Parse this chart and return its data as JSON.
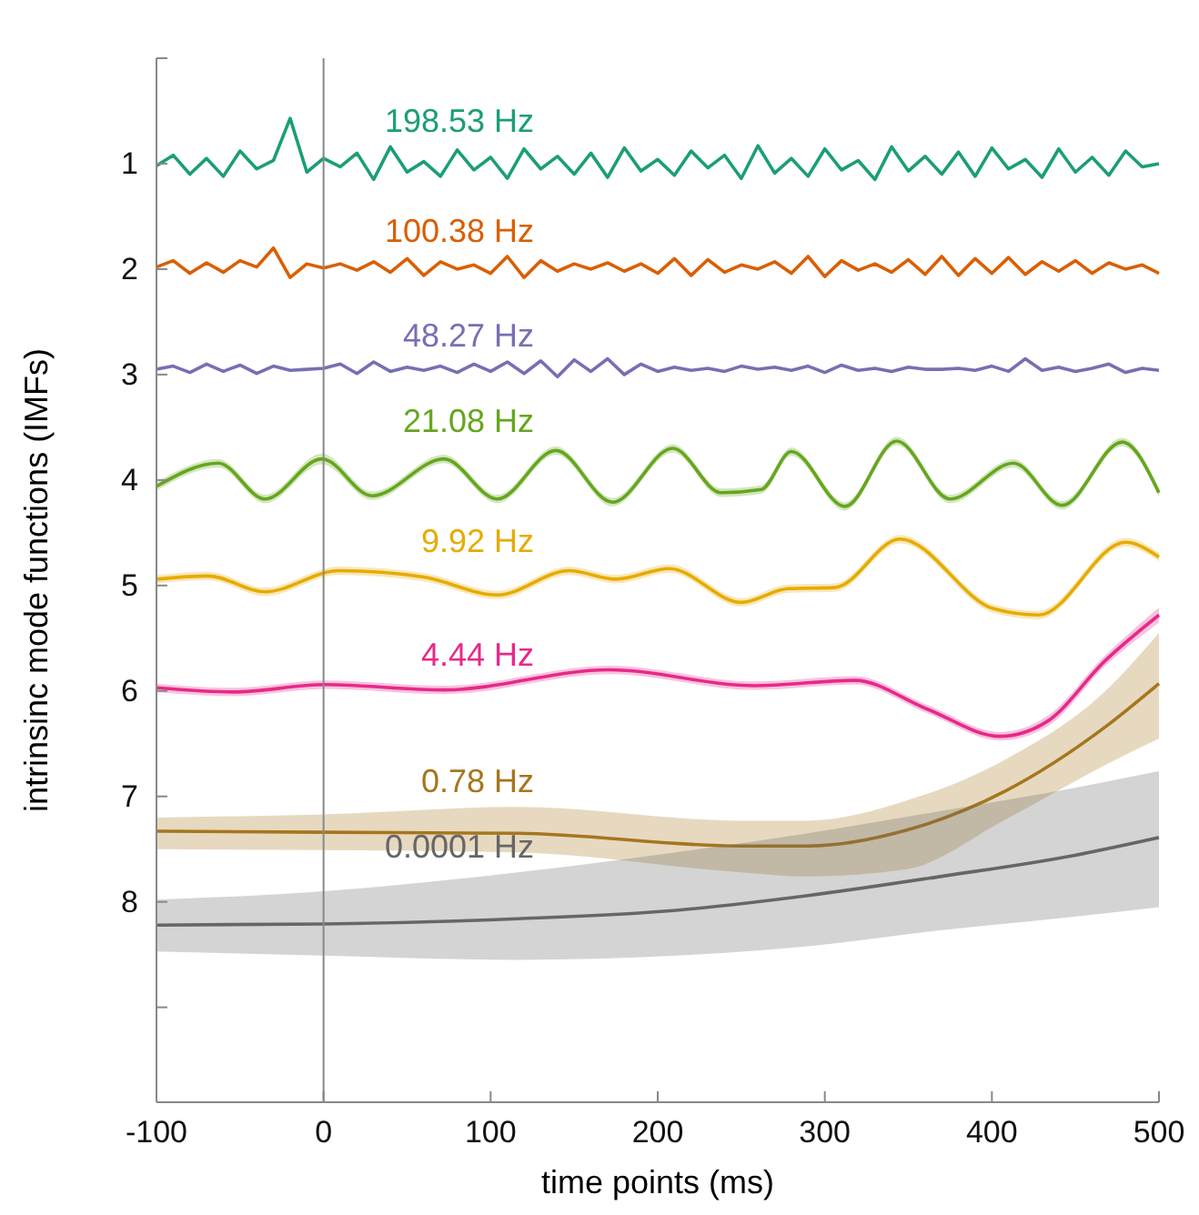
{
  "chart_data": {
    "type": "line",
    "xlabel": "time points (ms)",
    "ylabel": "intrinsinc mode functions (IMFs)",
    "xlim": [
      -100,
      500
    ],
    "xticks": [
      -100,
      0,
      100,
      200,
      300,
      400,
      500
    ],
    "ylim": [
      9.9,
      0
    ],
    "yticks": [
      {
        "value": 0,
        "label": null
      },
      1,
      2,
      3,
      4,
      5,
      6,
      7,
      8,
      {
        "value": 9,
        "label": null
      }
    ],
    "grid": false,
    "legend": false,
    "ref_lines": [
      {
        "axis": "x",
        "value": 0,
        "color": "#888888"
      }
    ],
    "x": [
      -100,
      -90,
      -80,
      -70,
      -60,
      -50,
      -40,
      -30,
      -20,
      -10,
      0,
      10,
      20,
      30,
      40,
      50,
      60,
      70,
      80,
      90,
      100,
      110,
      120,
      130,
      140,
      150,
      160,
      170,
      180,
      190,
      200,
      210,
      220,
      230,
      240,
      250,
      260,
      270,
      280,
      290,
      300,
      310,
      320,
      330,
      340,
      350,
      360,
      370,
      380,
      390,
      400,
      410,
      420,
      430,
      440,
      450,
      460,
      470,
      480,
      490,
      500
    ],
    "series": [
      {
        "name": "198.53 Hz",
        "color": "#1b9e77",
        "values": [
          1.02,
          0.92,
          1.1,
          0.95,
          1.12,
          0.88,
          1.05,
          0.97,
          0.57,
          1.08,
          0.95,
          1.03,
          0.9,
          1.15,
          0.84,
          1.08,
          0.98,
          1.12,
          0.87,
          1.06,
          0.94,
          1.14,
          0.86,
          1.05,
          0.93,
          1.1,
          0.9,
          1.13,
          0.85,
          1.07,
          0.96,
          1.11,
          0.88,
          1.04,
          0.92,
          1.14,
          0.83,
          1.09,
          0.95,
          1.12,
          0.86,
          1.06,
          0.97,
          1.15,
          0.84,
          1.07,
          0.93,
          1.1,
          0.89,
          1.12,
          0.85,
          1.05,
          0.96,
          1.13,
          0.86,
          1.08,
          0.94,
          1.11,
          0.88,
          1.03,
          1.0
        ]
      },
      {
        "name": "100.38 Hz",
        "color": "#d95f02",
        "values": [
          1.98,
          1.92,
          2.04,
          1.94,
          2.03,
          1.92,
          1.98,
          1.8,
          2.08,
          1.95,
          1.99,
          1.95,
          2.01,
          1.93,
          2.03,
          1.9,
          2.06,
          1.93,
          2.0,
          1.96,
          2.04,
          1.88,
          2.08,
          1.92,
          2.02,
          1.95,
          2.0,
          1.94,
          2.02,
          1.95,
          2.04,
          1.9,
          2.06,
          1.91,
          2.03,
          1.96,
          2.0,
          1.93,
          2.04,
          1.88,
          2.07,
          1.92,
          2.01,
          1.95,
          2.03,
          1.91,
          2.05,
          1.88,
          2.06,
          1.9,
          2.04,
          1.89,
          2.05,
          1.93,
          2.02,
          1.92,
          2.04,
          1.94,
          2.0,
          1.96,
          2.04
        ]
      },
      {
        "name": "48.27 Hz",
        "color": "#7570b3",
        "values": [
          2.95,
          2.92,
          2.98,
          2.9,
          2.97,
          2.91,
          2.99,
          2.92,
          2.96,
          2.95,
          2.94,
          2.9,
          2.99,
          2.88,
          2.97,
          2.93,
          2.96,
          2.92,
          2.98,
          2.9,
          2.97,
          2.88,
          2.99,
          2.87,
          3.02,
          2.86,
          2.97,
          2.85,
          3.0,
          2.9,
          2.97,
          2.93,
          2.96,
          2.94,
          2.97,
          2.92,
          2.95,
          2.93,
          2.96,
          2.92,
          2.98,
          2.91,
          2.96,
          2.94,
          2.97,
          2.93,
          2.95,
          2.95,
          2.94,
          2.96,
          2.92,
          2.97,
          2.85,
          2.96,
          2.93,
          2.97,
          2.94,
          2.9,
          2.98,
          2.94,
          2.96
        ]
      },
      {
        "name": "21.08 Hz",
        "color": "#66a61e",
        "x": [
          -100,
          -63,
          -35,
          -1,
          29,
          72,
          104,
          139,
          173,
          209,
          238,
          262,
          280,
          312,
          343,
          375,
          413,
          442,
          478,
          500
        ],
        "values": [
          4.06,
          3.84,
          4.18,
          3.8,
          4.15,
          3.8,
          4.18,
          3.72,
          4.21,
          3.7,
          4.12,
          4.09,
          3.73,
          4.25,
          3.63,
          4.18,
          3.84,
          4.24,
          3.64,
          4.12
        ],
        "lower": [
          4.02,
          3.8,
          4.14,
          3.75,
          4.11,
          3.76,
          4.14,
          3.68,
          4.17,
          3.66,
          4.08,
          4.05,
          3.69,
          4.21,
          3.59,
          4.14,
          3.8,
          4.2,
          3.6,
          4.08
        ],
        "upper": [
          4.1,
          3.88,
          4.22,
          3.85,
          4.19,
          3.84,
          4.22,
          3.76,
          4.25,
          3.74,
          4.16,
          4.13,
          3.77,
          4.29,
          3.67,
          4.22,
          3.88,
          4.28,
          3.68,
          4.16
        ]
      },
      {
        "name": "9.92 Hz",
        "color": "#e6ab02",
        "x": [
          -100,
          -69,
          -35,
          9,
          60,
          104,
          147,
          175,
          207,
          250,
          278,
          306,
          345,
          401,
          428,
          480,
          500
        ],
        "values": [
          4.94,
          4.91,
          5.06,
          4.86,
          4.92,
          5.09,
          4.86,
          4.94,
          4.84,
          5.16,
          5.03,
          5.02,
          4.56,
          5.22,
          5.28,
          4.59,
          4.73
        ],
        "lower": [
          4.9,
          4.87,
          5.02,
          4.82,
          4.88,
          5.05,
          4.82,
          4.9,
          4.8,
          5.12,
          4.99,
          4.98,
          4.52,
          5.18,
          5.24,
          4.55,
          4.69
        ],
        "upper": [
          4.98,
          4.95,
          5.1,
          4.9,
          4.96,
          5.13,
          4.9,
          4.98,
          4.88,
          5.2,
          5.07,
          5.06,
          4.6,
          5.26,
          5.32,
          4.63,
          4.77
        ]
      },
      {
        "name": "4.44 Hz",
        "color": "#e7298a",
        "x": [
          -100,
          -54,
          1,
          72,
          171,
          258,
          318,
          361,
          405,
          433,
          468,
          500
        ],
        "values": [
          5.97,
          6.01,
          5.94,
          5.99,
          5.8,
          5.95,
          5.9,
          6.17,
          6.43,
          6.29,
          5.71,
          5.28
        ],
        "lower": [
          5.93,
          5.97,
          5.9,
          5.95,
          5.76,
          5.91,
          5.86,
          6.13,
          6.39,
          6.24,
          5.66,
          5.21
        ],
        "upper": [
          6.01,
          6.05,
          5.98,
          6.03,
          5.84,
          5.99,
          5.94,
          6.21,
          6.47,
          6.34,
          5.76,
          5.35
        ]
      },
      {
        "name": "0.78 Hz",
        "color": "#a6761d",
        "x": [
          -100,
          0,
          116,
          250,
          290,
          349,
          408,
          468,
          500
        ],
        "values": [
          7.33,
          7.34,
          7.35,
          7.47,
          7.47,
          7.32,
          6.95,
          6.34,
          5.93
        ],
        "lower": [
          7.2,
          7.17,
          7.1,
          7.23,
          7.23,
          7.04,
          6.65,
          6.0,
          5.45
        ],
        "upper": [
          7.5,
          7.51,
          7.53,
          7.72,
          7.76,
          7.69,
          7.22,
          6.7,
          6.45
        ]
      },
      {
        "name": "0.0001 Hz",
        "color": "#666666",
        "x": [
          -100,
          0,
          116,
          211,
          290,
          369,
          449,
          500
        ],
        "values": [
          8.22,
          8.21,
          8.16,
          8.08,
          7.94,
          7.76,
          7.56,
          7.39
        ],
        "lower": [
          7.98,
          7.9,
          7.72,
          7.53,
          7.35,
          7.14,
          6.92,
          6.76
        ],
        "upper": [
          8.47,
          8.51,
          8.55,
          8.51,
          8.42,
          8.27,
          8.14,
          8.05
        ]
      }
    ]
  }
}
